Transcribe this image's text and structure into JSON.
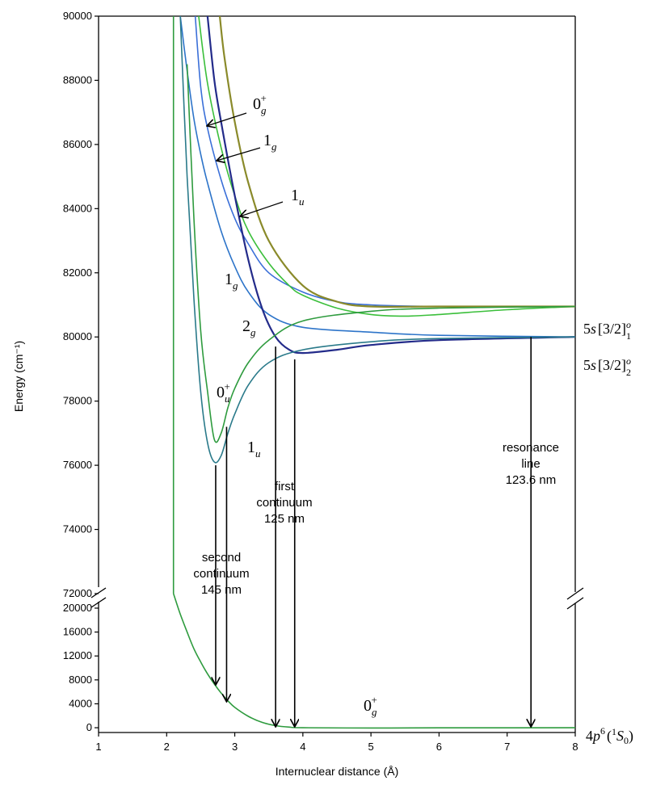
{
  "chart_data": {
    "type": "line",
    "xlabel": "Internuclear distance (Å)",
    "ylabel": "Energy (cm⁻¹)",
    "xlim": [
      1,
      8
    ],
    "ylim_lower": [
      -800,
      20000
    ],
    "ylim_upper": [
      72000,
      90000
    ],
    "axis_break": "between 20000 and 72000",
    "x_ticks": [
      "1",
      "2",
      "3",
      "4",
      "5",
      "6",
      "7",
      "8"
    ],
    "y_ticks_upper": [
      "72000",
      "74000",
      "76000",
      "78000",
      "80000",
      "82000",
      "84000",
      "86000",
      "88000",
      "90000"
    ],
    "y_ticks_lower": [
      "0",
      "4000",
      "8000",
      "12000",
      "16000",
      "20000"
    ],
    "grid": false,
    "legend": "none",
    "series": [
      {
        "label": "0g+ ground",
        "color": "#2e9b3e",
        "x": [
          2.1,
          2.2,
          2.3,
          2.4,
          2.5,
          2.6,
          2.7,
          2.8,
          2.9,
          3.0,
          3.2,
          3.4,
          3.6,
          3.8,
          4.0,
          5.0,
          6.0,
          8.0
        ],
        "y": [
          72000,
          19000,
          16000,
          13200,
          11000,
          9000,
          7300,
          5800,
          4500,
          3400,
          1900,
          900,
          350,
          100,
          0,
          -50,
          -20,
          0
        ]
      },
      {
        "label": "0g+ upper",
        "color": "#3a6fd8",
        "x": [
          2.42,
          2.5,
          2.6,
          2.8,
          3.0,
          3.2,
          3.5,
          4.0,
          4.5,
          5.0,
          6.0,
          8.0
        ],
        "y": [
          90000,
          87800,
          86500,
          84900,
          83700,
          82900,
          82000,
          81400,
          81100,
          81000,
          80950,
          80950
        ]
      },
      {
        "label": "1g upper",
        "color": "#3bbf3b",
        "x": [
          2.47,
          2.6,
          2.8,
          3.0,
          3.2,
          3.5,
          3.8,
          4.0,
          4.5,
          5.0,
          5.5,
          6.0,
          7.0,
          8.0
        ],
        "y": [
          90000,
          87900,
          85900,
          84400,
          83300,
          82300,
          81600,
          81300,
          80900,
          80700,
          80650,
          80700,
          80850,
          80950
        ]
      },
      {
        "label": "1u upper",
        "color": "#8a8a2a",
        "x": [
          2.78,
          2.85,
          3.0,
          3.2,
          3.5,
          4.0,
          4.5,
          5.0,
          6.0,
          8.0
        ],
        "y": [
          90000,
          88700,
          86700,
          84800,
          83000,
          81600,
          81100,
          80950,
          80950,
          80950
        ]
      },
      {
        "label": "1g",
        "color": "#2d74c9",
        "x": [
          2.2,
          2.3,
          2.4,
          2.5,
          2.6,
          2.8,
          3.0,
          3.2,
          3.5,
          4.0,
          5.0,
          6.0,
          8.0
        ],
        "y": [
          90000,
          88300,
          86800,
          85700,
          84800,
          83300,
          82200,
          81400,
          80700,
          80300,
          80150,
          80050,
          80000
        ]
      },
      {
        "label": "2g",
        "color": "#232b8a",
        "x": [
          2.6,
          2.7,
          2.8,
          3.0,
          3.2,
          3.4,
          3.6,
          3.8,
          4.0,
          4.5,
          5.0,
          6.0,
          8.0
        ],
        "y": [
          90000,
          88000,
          86700,
          84400,
          82400,
          80900,
          80000,
          79600,
          79500,
          79600,
          79750,
          79900,
          80000
        ]
      },
      {
        "label": "0u+",
        "color": "#2e9b3e",
        "x": [
          2.3,
          2.4,
          2.5,
          2.6,
          2.7,
          2.8,
          2.9,
          3.0,
          3.2,
          3.5,
          4.0,
          5.0,
          6.0,
          8.0
        ],
        "y": [
          88500,
          83700,
          80200,
          78300,
          76800,
          77000,
          77800,
          78400,
          79200,
          79900,
          80500,
          80800,
          80900,
          80950
        ]
      },
      {
        "label": "1u",
        "color": "#2a7a8a",
        "x": [
          2.2,
          2.3,
          2.4,
          2.5,
          2.6,
          2.7,
          2.8,
          2.9,
          3.0,
          3.2,
          3.5,
          4.0,
          5.0,
          6.0,
          8.0
        ],
        "y": [
          90000,
          85000,
          81200,
          78300,
          76700,
          76100,
          76300,
          77000,
          77600,
          78500,
          79200,
          79600,
          79850,
          79950,
          80000
        ]
      },
      {
        "label": "steep wall",
        "color": "#2e9b3e",
        "x": [
          2.1,
          2.1
        ],
        "y": [
          72000,
          90000
        ]
      }
    ],
    "arrows": [
      {
        "x": 2.72,
        "y_from": 76000,
        "y_to": 7000
      },
      {
        "x": 2.88,
        "y_from": 77200,
        "y_to": 4200
      },
      {
        "x": 3.6,
        "y_from": 79700,
        "y_to": 0
      },
      {
        "x": 3.88,
        "y_from": 79300,
        "y_to": 0
      },
      {
        "x": 7.35,
        "y_from": 80000,
        "y_to": 0
      }
    ],
    "annotations": {
      "second_continuum": [
        "second",
        "continuum",
        "145 nm"
      ],
      "first_continuum": [
        "first",
        "continuum",
        "125 nm"
      ],
      "resonance_line": [
        "resonance",
        "line",
        "123.6 nm"
      ]
    },
    "state_labels": {
      "l0g_top": "0g+",
      "l1g_top": "1g",
      "l1u_top": "1u",
      "l1g_mid": "1g",
      "l2g": "2g",
      "l0u": "0u+",
      "l1u_bottom": "1u",
      "l0g_bottom": "0g+"
    },
    "asymptote_labels": {
      "upper": "5s[3/2]°1",
      "middle": "5s[3/2]°2",
      "ground": "4p⁶(¹S₀)"
    }
  }
}
